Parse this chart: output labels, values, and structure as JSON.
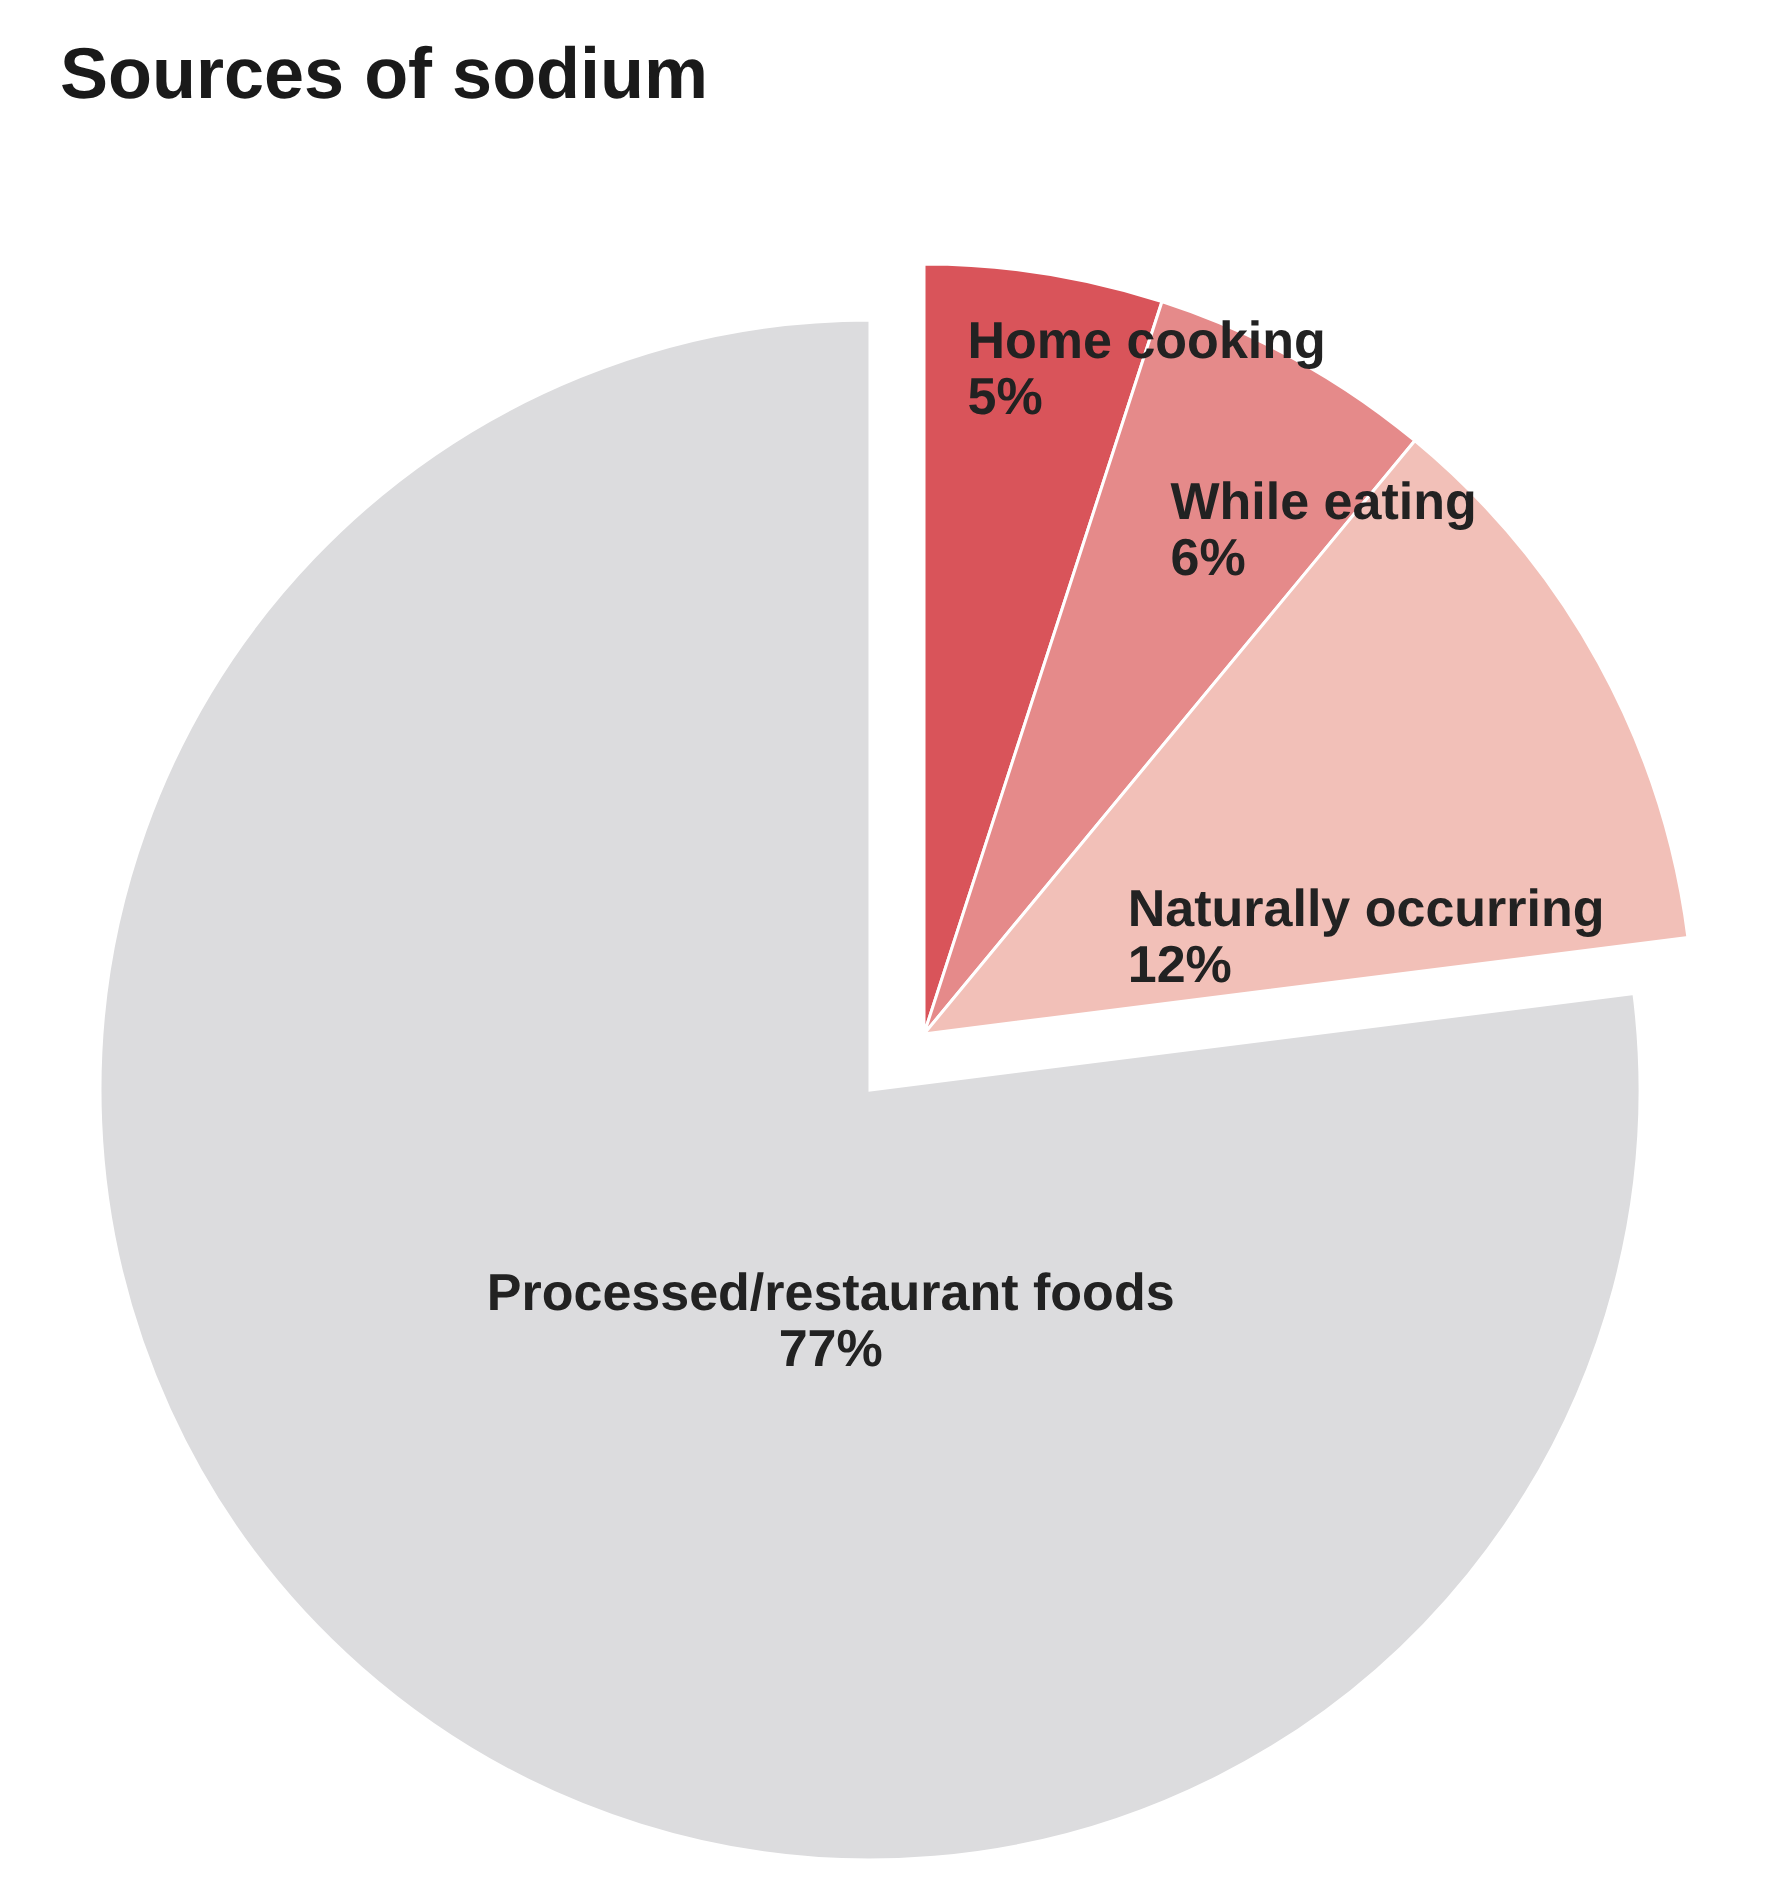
{
  "chart_data": {
    "type": "pie",
    "title": "Sources of sodium",
    "categories": [
      "Home cooking",
      "While eating",
      "Naturally occurring",
      "Processed/restaurant foods"
    ],
    "values": [
      5,
      6,
      12,
      77
    ],
    "value_labels": [
      "5%",
      "6%",
      "12%",
      "77%"
    ],
    "colors": [
      "#d9545a",
      "#e58a8a",
      "#f2c0b8",
      "#dcdcde"
    ],
    "legend": false
  }
}
